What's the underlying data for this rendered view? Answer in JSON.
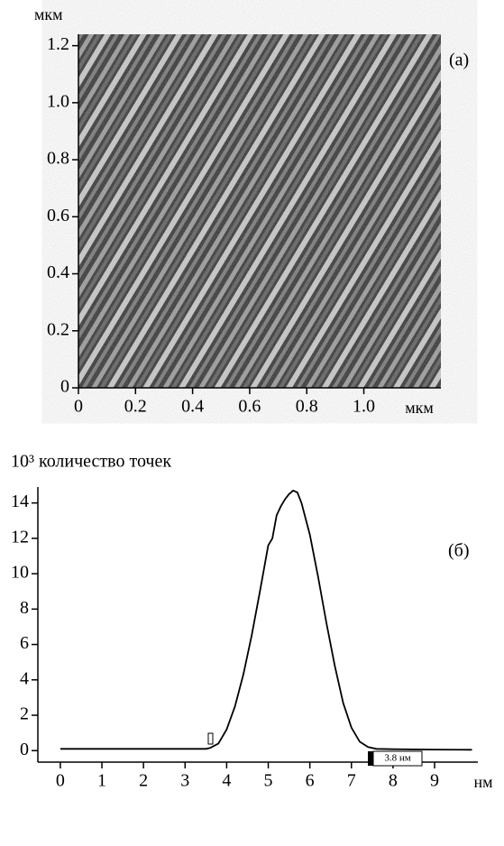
{
  "chart_data": [
    {
      "type": "image",
      "panel_label": "(a)",
      "xlabel": "мкм",
      "ylabel": "мкм",
      "xlim": [
        0,
        1.27
      ],
      "ylim": [
        0,
        1.24
      ],
      "xticks": [
        0,
        0.2,
        0.4,
        0.6,
        0.8,
        {
          "value": 1,
          "label": "1.0"
        }
      ],
      "yticks": [
        0,
        0.2,
        0.4,
        0.6,
        0.8,
        {
          "value": 1,
          "label": "1.0"
        },
        1.2
      ]
    },
    {
      "type": "line",
      "panel_label": "(б)",
      "xlabel": "нм",
      "ylabel": "10³ количество точек",
      "scale_label": "3.8 нм",
      "color": "#000000",
      "x": [
        0,
        1,
        2,
        3,
        3.5,
        3.6,
        3.8,
        4.0,
        4.2,
        4.4,
        4.6,
        4.8,
        5.0,
        5.1,
        5.2,
        5.3,
        5.4,
        5.5,
        5.6,
        5.7,
        5.8,
        6.0,
        6.2,
        6.4,
        6.6,
        6.8,
        7.0,
        7.2,
        7.4,
        7.6,
        8,
        9,
        9.9
      ],
      "values": [
        0.1,
        0.1,
        0.1,
        0.1,
        0.1,
        0.15,
        0.4,
        1.2,
        2.5,
        4.3,
        6.5,
        9.0,
        11.6,
        12.0,
        13.3,
        13.8,
        14.2,
        14.5,
        14.7,
        14.6,
        14.0,
        12.2,
        9.8,
        7.2,
        4.8,
        2.7,
        1.3,
        0.5,
        0.2,
        0.1,
        0.08,
        0.06,
        0.05
      ],
      "xlim": [
        -0.54,
        10.04
      ],
      "ylim": [
        -0.65,
        14.9
      ],
      "xticks": [
        0,
        1,
        2,
        3,
        4,
        5,
        6,
        7,
        8,
        9
      ],
      "yticks": [
        0,
        2,
        4,
        6,
        8,
        10,
        12,
        14
      ]
    }
  ]
}
